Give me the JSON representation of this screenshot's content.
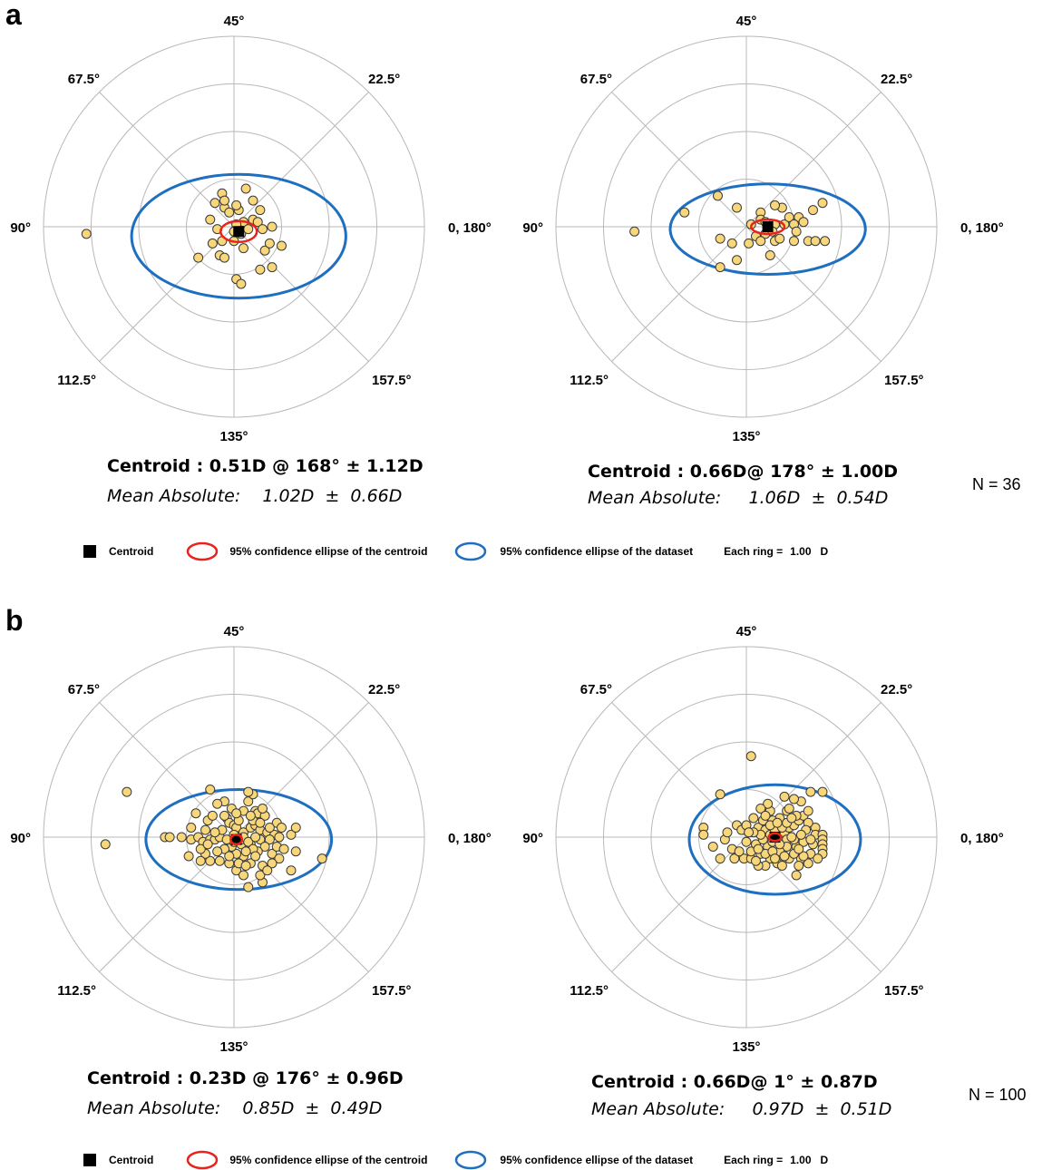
{
  "panels": [
    {
      "letter": "a",
      "n_label": "N = 36",
      "left": {
        "centroid": "Centroid :  0.51D @ 168° ±  1.12D",
        "mean_label": "Mean Absolute:",
        "mean_value": "1.02D  ±  0.66D"
      },
      "right": {
        "centroid": "Centroid :  0.66D@  178° ±  1.00D",
        "mean_label": "Mean Absolute:",
        "mean_value": "1.06D  ±  0.54D"
      }
    },
    {
      "letter": "b",
      "n_label": "N = 100",
      "left": {
        "centroid": "Centroid :  0.23D @ 176° ±  0.96D",
        "mean_label": "Mean Absolute:",
        "mean_value": "0.85D  ±  0.49D"
      },
      "right": {
        "centroid": "Centroid :  0.66D@  1°     ±  0.87D",
        "mean_label": "Mean Absolute:",
        "mean_value": "0.97D  ±  0.51D"
      }
    }
  ],
  "legend": {
    "centroid": "Centroid",
    "centroid_ellipse": "95% confidence ellipse of  the centroid",
    "dataset_ellipse": "95% confidence ellipse of the dataset",
    "ring_label": "Each ring =",
    "ring_value": "1.00",
    "ring_unit": "D"
  },
  "colors": {
    "point_fill": "#F8D77A",
    "centroid_ellipse": "#E8231E",
    "dataset_ellipse": "#1F6FC0",
    "centroid": "#000000",
    "grid": "#B8B8B8"
  },
  "chart_data": [
    {
      "type": "scatter",
      "subtype": "double-angle polar plot",
      "panel": "a",
      "position": "left",
      "angle_labels": [
        "0, 180°",
        "22.5°",
        "45°",
        "67.5°",
        "90°",
        "112.5°",
        "135°",
        "157.5°"
      ],
      "ring_step_D": 1.0,
      "rings": 4,
      "centroid": {
        "magnitude_D": 0.51,
        "axis_deg": 168,
        "sd_D": 1.12
      },
      "mean_absolute": {
        "value_D": 1.02,
        "sd_D": 0.66
      },
      "dataset_ellipse": {
        "cx": 0.1,
        "cy": -0.2,
        "rx": 2.25,
        "ry": 1.3
      },
      "centroid_ellipse": {
        "cx": 0.1,
        "cy": -0.1,
        "rx": 0.38,
        "ry": 0.22
      },
      "points": [
        [
          -3.1,
          -0.15
        ],
        [
          -0.2,
          0.4
        ],
        [
          -0.1,
          0.3
        ],
        [
          0.1,
          0.35
        ],
        [
          0.2,
          0.1
        ],
        [
          0.05,
          0.05
        ],
        [
          0.15,
          -0.15
        ],
        [
          0.3,
          -0.05
        ],
        [
          0.0,
          -0.1
        ],
        [
          0.4,
          0.15
        ],
        [
          -0.35,
          -0.05
        ],
        [
          -0.5,
          0.15
        ],
        [
          0.25,
          0.8
        ],
        [
          0.05,
          0.45
        ],
        [
          0.4,
          0.55
        ],
        [
          0.55,
          0.35
        ],
        [
          0.5,
          0.1
        ],
        [
          0.6,
          -0.05
        ],
        [
          0.8,
          0.0
        ],
        [
          1.0,
          -0.4
        ],
        [
          0.65,
          -0.5
        ],
        [
          0.55,
          -0.9
        ],
        [
          0.75,
          -0.35
        ],
        [
          0.8,
          -0.85
        ],
        [
          0.05,
          -1.1
        ],
        [
          0.15,
          -1.2
        ],
        [
          0.0,
          -0.3
        ],
        [
          -0.25,
          -0.3
        ],
        [
          -0.3,
          -0.6
        ],
        [
          -0.2,
          -0.65
        ],
        [
          -0.45,
          -0.35
        ],
        [
          -0.75,
          -0.65
        ],
        [
          -0.25,
          0.7
        ],
        [
          -0.2,
          0.55
        ],
        [
          -0.4,
          0.5
        ],
        [
          0.2,
          -0.45
        ]
      ]
    },
    {
      "type": "scatter",
      "subtype": "double-angle polar plot",
      "panel": "a",
      "position": "right",
      "angle_labels": [
        "0, 180°",
        "22.5°",
        "45°",
        "67.5°",
        "90°",
        "112.5°",
        "135°",
        "157.5°"
      ],
      "ring_step_D": 1.0,
      "rings": 4,
      "centroid": {
        "magnitude_D": 0.66,
        "axis_deg": 178,
        "sd_D": 1.0
      },
      "mean_absolute": {
        "value_D": 1.06,
        "sd_D": 0.54
      },
      "dataset_ellipse": {
        "cx": 0.45,
        "cy": -0.05,
        "rx": 2.05,
        "ry": 0.95
      },
      "centroid_ellipse": {
        "cx": 0.45,
        "cy": -0.0,
        "rx": 0.35,
        "ry": 0.15
      },
      "points": [
        [
          -2.35,
          -0.1
        ],
        [
          -1.3,
          0.3
        ],
        [
          -0.6,
          0.65
        ],
        [
          -0.2,
          0.4
        ],
        [
          -0.55,
          -0.25
        ],
        [
          -0.3,
          -0.35
        ],
        [
          -0.55,
          -0.85
        ],
        [
          -0.2,
          -0.7
        ],
        [
          0.1,
          0.05
        ],
        [
          0.3,
          0.3
        ],
        [
          0.3,
          0.15
        ],
        [
          0.4,
          0.1
        ],
        [
          0.5,
          0.0
        ],
        [
          0.6,
          0.05
        ],
        [
          0.2,
          -0.2
        ],
        [
          0.4,
          -0.15
        ],
        [
          0.6,
          -0.3
        ],
        [
          0.55,
          -0.1
        ],
        [
          0.8,
          0.05
        ],
        [
          0.75,
          0.4
        ],
        [
          0.6,
          0.45
        ],
        [
          0.9,
          0.2
        ],
        [
          1.1,
          0.2
        ],
        [
          1.0,
          0.05
        ],
        [
          1.2,
          0.1
        ],
        [
          1.4,
          0.35
        ],
        [
          1.05,
          -0.1
        ],
        [
          1.0,
          -0.3
        ],
        [
          1.3,
          -0.3
        ],
        [
          1.45,
          -0.3
        ],
        [
          1.65,
          -0.3
        ],
        [
          1.6,
          0.5
        ],
        [
          0.5,
          -0.6
        ],
        [
          0.05,
          -0.35
        ],
        [
          0.3,
          -0.3
        ],
        [
          0.7,
          -0.25
        ]
      ]
    },
    {
      "type": "scatter",
      "subtype": "double-angle polar plot",
      "panel": "b",
      "position": "left",
      "angle_labels": [
        "0, 180°",
        "22.5°",
        "45°",
        "67.5°",
        "90°",
        "112.5°",
        "135°",
        "157.5°"
      ],
      "ring_step_D": 1.0,
      "rings": 4,
      "centroid": {
        "magnitude_D": 0.23,
        "axis_deg": 176,
        "sd_D": 0.96
      },
      "mean_absolute": {
        "value_D": 0.85,
        "sd_D": 0.49
      },
      "dataset_ellipse": {
        "cx": 0.1,
        "cy": -0.05,
        "rx": 1.95,
        "ry": 1.05
      },
      "centroid_ellipse": {
        "cx": 0.05,
        "cy": -0.05,
        "rx": 0.12,
        "ry": 0.1
      },
      "points": [
        [
          -2.7,
          -0.15
        ],
        [
          -2.25,
          0.95
        ],
        [
          -1.45,
          0.0
        ],
        [
          -1.35,
          0.0
        ],
        [
          -0.9,
          -0.05
        ],
        [
          -0.75,
          0.0
        ],
        [
          -0.65,
          -0.1
        ],
        [
          -0.5,
          -0.05
        ],
        [
          -0.4,
          -0.05
        ],
        [
          -0.3,
          0.0
        ],
        [
          -0.8,
          0.5
        ],
        [
          -0.55,
          0.35
        ],
        [
          -0.45,
          0.45
        ],
        [
          -0.5,
          1.0
        ],
        [
          -0.15,
          0.4
        ],
        [
          -0.1,
          0.3
        ],
        [
          0.0,
          0.25
        ],
        [
          0.05,
          0.2
        ],
        [
          0.2,
          0.1
        ],
        [
          0.35,
          0.2
        ],
        [
          0.45,
          0.25
        ],
        [
          0.55,
          0.15
        ],
        [
          0.7,
          0.1
        ],
        [
          0.85,
          0.05
        ],
        [
          0.95,
          0.0
        ],
        [
          0.75,
          -0.05
        ],
        [
          0.55,
          -0.05
        ],
        [
          0.65,
          -0.2
        ],
        [
          0.5,
          -0.3
        ],
        [
          0.8,
          -0.35
        ],
        [
          0.95,
          -0.45
        ],
        [
          0.6,
          -0.6
        ],
        [
          0.35,
          -0.55
        ],
        [
          0.2,
          -0.4
        ],
        [
          0.05,
          -0.35
        ],
        [
          0.15,
          -0.15
        ],
        [
          -0.05,
          -0.2
        ],
        [
          -0.2,
          -0.25
        ],
        [
          -0.35,
          -0.3
        ],
        [
          -0.5,
          -0.5
        ],
        [
          -0.3,
          -0.5
        ],
        [
          -0.1,
          -0.55
        ],
        [
          0.05,
          -0.7
        ],
        [
          0.2,
          -0.8
        ],
        [
          -0.6,
          -0.35
        ],
        [
          -0.7,
          -0.25
        ],
        [
          0.3,
          0.75
        ],
        [
          0.4,
          0.9
        ],
        [
          0.3,
          0.95
        ],
        [
          0.45,
          0.55
        ],
        [
          0.5,
          0.5
        ],
        [
          0.2,
          0.55
        ],
        [
          -0.2,
          0.75
        ],
        [
          -0.05,
          0.6
        ],
        [
          1.2,
          0.05
        ],
        [
          0.65,
          0.45
        ],
        [
          0.4,
          0.35
        ],
        [
          0.1,
          0.35
        ],
        [
          0.9,
          0.3
        ],
        [
          -0.9,
          0.2
        ],
        [
          1.3,
          -0.3
        ],
        [
          1.85,
          -0.45
        ],
        [
          1.2,
          -0.7
        ],
        [
          0.6,
          -0.95
        ],
        [
          0.3,
          -1.05
        ],
        [
          0.9,
          -0.2
        ],
        [
          0.35,
          -0.15
        ],
        [
          0.15,
          -0.05
        ],
        [
          0.2,
          0.0
        ],
        [
          0.3,
          -0.1
        ],
        [
          0.4,
          -0.25
        ],
        [
          0.0,
          -0.1
        ],
        [
          -0.15,
          -0.05
        ],
        [
          -0.25,
          0.15
        ],
        [
          -0.6,
          0.15
        ],
        [
          -0.7,
          -0.5
        ],
        [
          -1.1,
          0.0
        ],
        [
          0.75,
          0.2
        ],
        [
          1.05,
          -0.25
        ],
        [
          -0.35,
          0.7
        ],
        [
          0.55,
          -0.8
        ],
        [
          0.25,
          -0.3
        ],
        [
          0.45,
          0.0
        ],
        [
          0.6,
          0.6
        ],
        [
          0.0,
          0.05
        ],
        [
          -0.4,
          0.1
        ],
        [
          -0.95,
          -0.4
        ],
        [
          0.8,
          -0.55
        ],
        [
          1.3,
          0.2
        ],
        [
          0.05,
          0.5
        ],
        [
          -0.1,
          -0.4
        ],
        [
          0.55,
          0.3
        ],
        [
          0.35,
          0.45
        ],
        [
          -0.2,
          0.45
        ],
        [
          0.1,
          -0.55
        ],
        [
          0.7,
          -0.7
        ],
        [
          -0.55,
          -0.15
        ],
        [
          1.0,
          0.2
        ],
        [
          0.25,
          -0.6
        ],
        [
          0.45,
          -0.4
        ]
      ]
    },
    {
      "type": "scatter",
      "subtype": "double-angle polar plot",
      "panel": "b",
      "position": "right",
      "angle_labels": [
        "0, 180°",
        "22.5°",
        "45°",
        "67.5°",
        "90°",
        "112.5°",
        "135°",
        "157.5°"
      ],
      "ring_step_D": 1.0,
      "rings": 4,
      "centroid": {
        "magnitude_D": 0.66,
        "axis_deg": 1,
        "sd_D": 0.87
      },
      "mean_absolute": {
        "value_D": 0.97,
        "sd_D": 0.51
      },
      "dataset_ellipse": {
        "cx": 0.6,
        "cy": -0.05,
        "rx": 1.8,
        "ry": 1.15
      },
      "centroid_ellipse": {
        "cx": 0.6,
        "cy": 0.0,
        "rx": 0.13,
        "ry": 0.08
      },
      "points": [
        [
          0.1,
          1.7
        ],
        [
          -0.55,
          0.9
        ],
        [
          -0.9,
          0.2
        ],
        [
          -0.9,
          0.05
        ],
        [
          -0.7,
          -0.2
        ],
        [
          -0.45,
          -0.05
        ],
        [
          -0.2,
          0.25
        ],
        [
          -0.1,
          0.15
        ],
        [
          0.0,
          -0.1
        ],
        [
          -0.05,
          -0.45
        ],
        [
          -0.25,
          -0.45
        ],
        [
          -0.55,
          -0.45
        ],
        [
          0.1,
          -0.45
        ],
        [
          0.3,
          -0.35
        ],
        [
          0.25,
          0.2
        ],
        [
          0.35,
          0.35
        ],
        [
          0.4,
          0.15
        ],
        [
          0.5,
          0.05
        ],
        [
          0.6,
          0.05
        ],
        [
          0.7,
          0.0
        ],
        [
          0.8,
          0.1
        ],
        [
          0.9,
          0.2
        ],
        [
          1.0,
          0.25
        ],
        [
          1.1,
          0.35
        ],
        [
          1.2,
          0.45
        ],
        [
          1.3,
          0.55
        ],
        [
          1.15,
          0.75
        ],
        [
          1.35,
          0.95
        ],
        [
          1.6,
          0.95
        ],
        [
          0.85,
          0.55
        ],
        [
          0.7,
          0.4
        ],
        [
          0.55,
          0.35
        ],
        [
          0.5,
          0.55
        ],
        [
          0.45,
          0.7
        ],
        [
          0.8,
          0.85
        ],
        [
          1.0,
          0.8
        ],
        [
          0.3,
          0.6
        ],
        [
          0.15,
          0.4
        ],
        [
          1.45,
          0.2
        ],
        [
          1.45,
          0.05
        ],
        [
          1.6,
          0.05
        ],
        [
          1.6,
          -0.05
        ],
        [
          1.6,
          -0.15
        ],
        [
          1.6,
          -0.25
        ],
        [
          1.6,
          -0.35
        ],
        [
          1.4,
          -0.15
        ],
        [
          1.35,
          -0.35
        ],
        [
          1.3,
          -0.55
        ],
        [
          1.15,
          -0.45
        ],
        [
          1.05,
          -0.2
        ],
        [
          1.0,
          -0.05
        ],
        [
          0.85,
          -0.05
        ],
        [
          0.85,
          -0.2
        ],
        [
          0.7,
          -0.3
        ],
        [
          0.65,
          -0.55
        ],
        [
          0.5,
          -0.45
        ],
        [
          0.4,
          -0.6
        ],
        [
          0.25,
          -0.6
        ],
        [
          0.1,
          -0.3
        ],
        [
          0.2,
          -0.15
        ],
        [
          0.45,
          -0.2
        ],
        [
          1.2,
          -0.4
        ],
        [
          1.1,
          -0.6
        ],
        [
          1.05,
          -0.8
        ],
        [
          1.3,
          0.3
        ],
        [
          0.9,
          -0.45
        ],
        [
          0.75,
          -0.6
        ],
        [
          0.95,
          0.0
        ],
        [
          0.55,
          -0.1
        ],
        [
          0.35,
          -0.05
        ],
        [
          0.6,
          0.15
        ],
        [
          0.75,
          0.2
        ],
        [
          0.3,
          0.05
        ],
        [
          1.25,
          0.15
        ],
        [
          1.05,
          0.45
        ],
        [
          -0.3,
          -0.25
        ],
        [
          0.0,
          0.25
        ],
        [
          0.15,
          0.1
        ],
        [
          1.2,
          -0.1
        ],
        [
          0.5,
          0.25
        ],
        [
          0.85,
          0.3
        ],
        [
          1.0,
          -0.35
        ],
        [
          0.4,
          -0.35
        ],
        [
          0.2,
          -0.5
        ],
        [
          -0.15,
          -0.3
        ],
        [
          0.55,
          -0.3
        ],
        [
          1.35,
          -0.05
        ],
        [
          0.9,
          0.6
        ],
        [
          0.65,
          0.3
        ],
        [
          1.15,
          0.05
        ],
        [
          0.25,
          -0.25
        ],
        [
          0.7,
          -0.15
        ],
        [
          0.4,
          0.45
        ],
        [
          -0.4,
          0.1
        ],
        [
          1.5,
          -0.45
        ],
        [
          0.05,
          0.1
        ],
        [
          0.8,
          -0.4
        ],
        [
          1.1,
          -0.25
        ],
        [
          0.95,
          0.4
        ],
        [
          0.6,
          -0.45
        ]
      ]
    }
  ]
}
